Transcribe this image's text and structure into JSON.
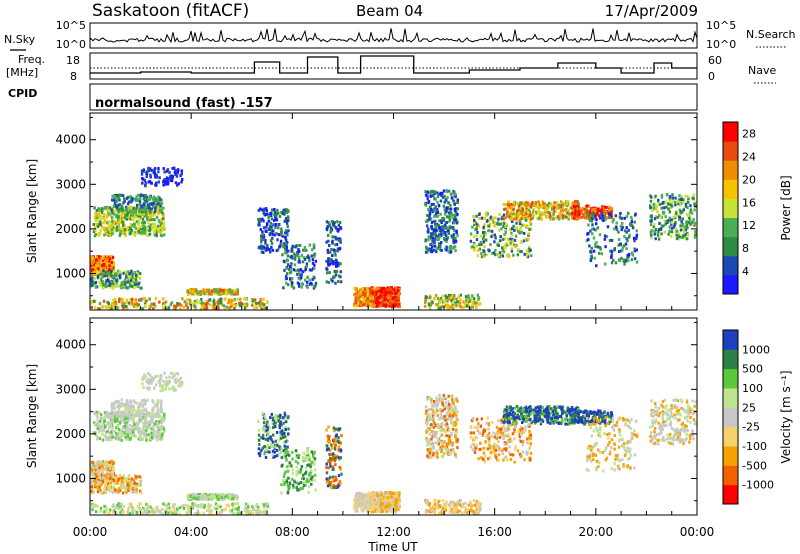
{
  "header": {
    "station": "Saskatoon (fitACF)",
    "beam": "Beam 04",
    "date": "17/Apr/2009"
  },
  "top_panels": {
    "nsky_label": "N.Sky",
    "nsky_ticks": [
      "10^5",
      "10^0"
    ],
    "nsearch_label": "N.Search",
    "nsearch_ticks": [
      "10^5",
      "10^0"
    ],
    "freq_label": "Freq.",
    "freq_unit": "[MHz]",
    "freq_ticks": [
      "18",
      "8"
    ],
    "nave_label": "Nave",
    "nave_ticks": [
      "60",
      "0"
    ],
    "cpid_label": "CPID",
    "cpid_text": "normalsound (fast) -157"
  },
  "colors": {
    "power": [
      "#1a1aff",
      "#1a49b5",
      "#2f8a44",
      "#4cae52",
      "#c8e235",
      "#f5c300",
      "#f08c00",
      "#e84a10",
      "#ff0000"
    ],
    "velocity": [
      "#ff0000",
      "#f36000",
      "#f7a200",
      "#f7d26b",
      "#c8c8c8",
      "#bde58e",
      "#5bc93b",
      "#2f7f4a",
      "#1e3fbf"
    ]
  },
  "chart_data": [
    {
      "type": "heatmap",
      "name": "power",
      "ylabel": "Slant Range [km]",
      "yticks": [
        "1000",
        "2000",
        "3000",
        "4000"
      ],
      "ylim": [
        180,
        4600
      ],
      "colorbar_label": "Power [dB]",
      "colorbar_ticks": [
        "4",
        "8",
        "12",
        "16",
        "20",
        "24",
        "28"
      ],
      "clim": [
        0,
        30
      ]
    },
    {
      "type": "heatmap",
      "name": "velocity",
      "ylabel": "Slant Range [km]",
      "yticks": [
        "1000",
        "2000",
        "3000",
        "4000"
      ],
      "ylim": [
        180,
        4600
      ],
      "xlabel": "Time UT",
      "xticks": [
        "00:00",
        "04:00",
        "08:00",
        "12:00",
        "16:00",
        "20:00",
        "00:00"
      ],
      "xlim": [
        0,
        24
      ],
      "colorbar_label": "Velocity [m s⁻¹]",
      "colorbar_ticks": [
        "-1000",
        "-500",
        "-100",
        "-25",
        "25",
        "100",
        "500",
        "1000"
      ]
    }
  ]
}
